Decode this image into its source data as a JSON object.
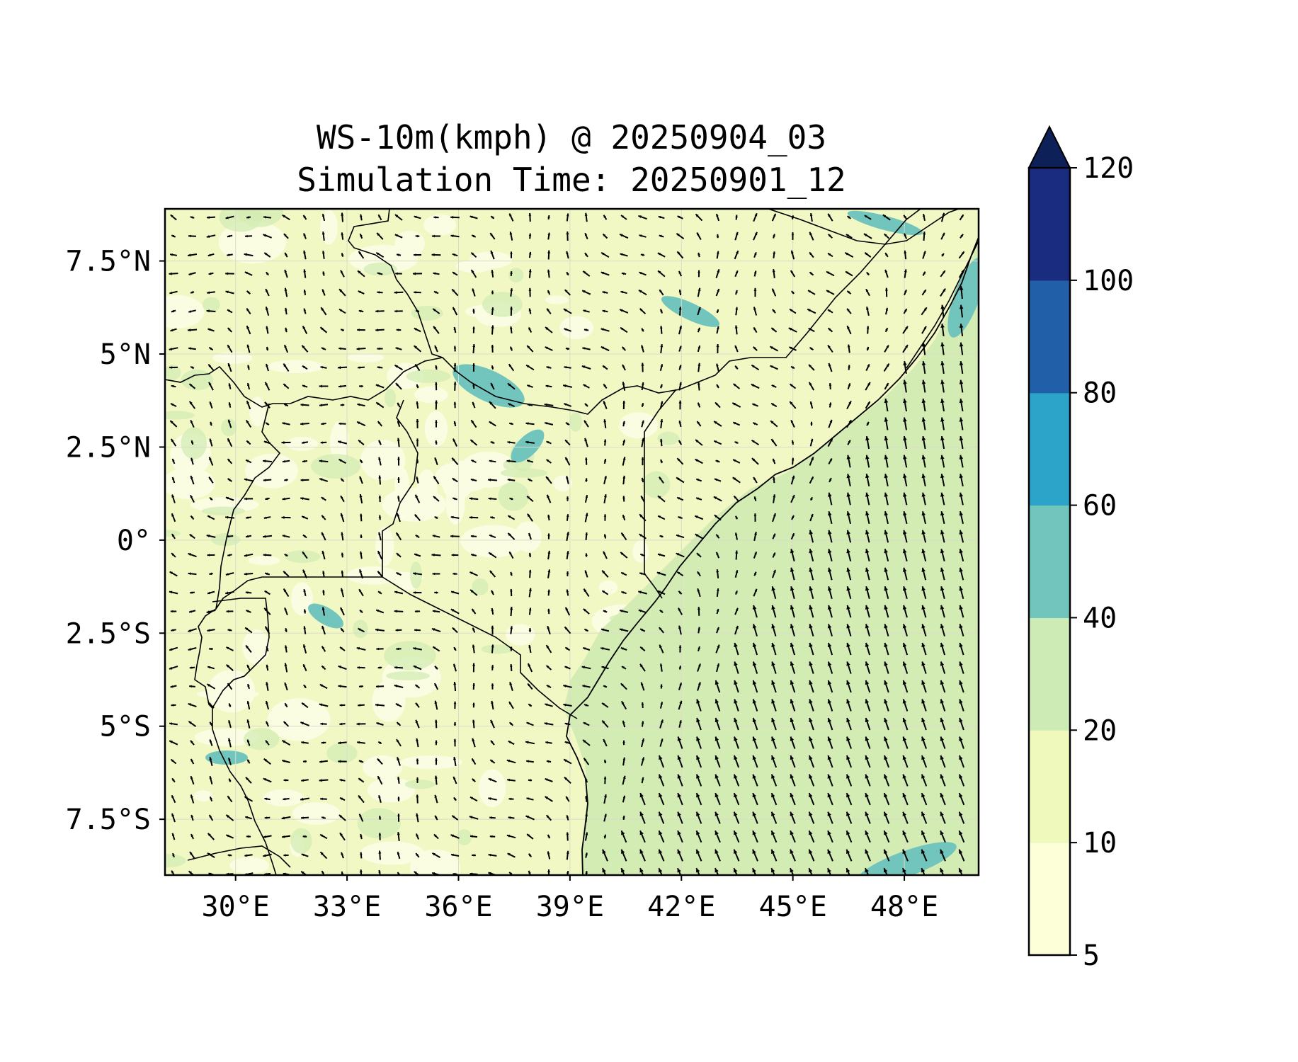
{
  "map": {
    "title_line1": "WS-10m(kmph) @ 20250904_03",
    "title_line2": "Simulation Time: 20250901_12",
    "lon_ticks": [
      "30°E",
      "33°E",
      "36°E",
      "39°E",
      "42°E",
      "45°E",
      "48°E"
    ],
    "lat_ticks": [
      "7.5°N",
      "5°N",
      "2.5°N",
      "0°",
      "2.5°S",
      "5°S",
      "7.5°S"
    ],
    "lon_range": [
      28.1,
      50.0
    ],
    "lat_range": [
      -9.0,
      8.9
    ],
    "lon_tick_values": [
      30,
      33,
      36,
      39,
      42,
      45,
      48
    ],
    "lat_tick_values": [
      7.5,
      5,
      2.5,
      0,
      -2.5,
      -5,
      -7.5
    ]
  },
  "colorbar": {
    "levels": [
      "5",
      "10",
      "20",
      "40",
      "60",
      "80",
      "100",
      "120"
    ],
    "colors": [
      "#fdffd9",
      "#f0f9bc",
      "#cdebb4",
      "#72c5bd",
      "#2ca3c9",
      "#225fa9",
      "#1a2c80"
    ],
    "extend_color": "#0d2158"
  },
  "colors": {
    "land_base": "#f2f8c4",
    "land_light": "#fbfde3",
    "ocean": "#d3ecb4"
  }
}
